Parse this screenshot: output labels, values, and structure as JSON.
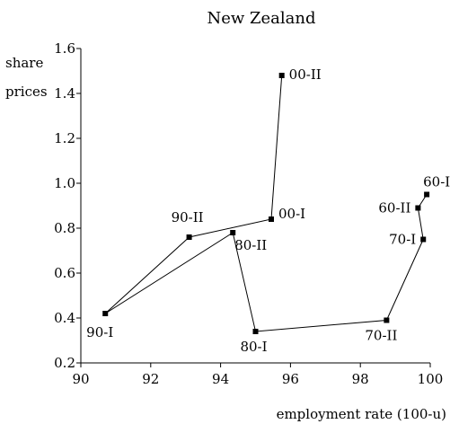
{
  "chart_data": {
    "type": "line",
    "title": "New Zealand",
    "xlabel": "employment rate (100-u)",
    "ylabel_lines": [
      "share",
      "prices"
    ],
    "xlim": [
      90,
      100
    ],
    "ylim": [
      0.2,
      1.6
    ],
    "x_ticks": [
      90,
      92,
      94,
      96,
      98,
      100
    ],
    "y_ticks": [
      0.2,
      0.4,
      0.6,
      0.8,
      1.0,
      1.2,
      1.4,
      1.6
    ],
    "x_tick_labels": [
      "90",
      "92",
      "94",
      "96",
      "98",
      "100"
    ],
    "y_tick_labels": [
      "0.2",
      "0.4",
      "0.6",
      "0.8",
      "1.0",
      "1.2",
      "1.4",
      "1.6"
    ],
    "grid": false,
    "points": [
      {
        "label": "60-I",
        "x": 99.9,
        "y": 0.95
      },
      {
        "label": "60-II",
        "x": 99.65,
        "y": 0.89
      },
      {
        "label": "70-I",
        "x": 99.8,
        "y": 0.75
      },
      {
        "label": "70-II",
        "x": 98.75,
        "y": 0.39
      },
      {
        "label": "80-I",
        "x": 95.0,
        "y": 0.34
      },
      {
        "label": "80-II",
        "x": 94.35,
        "y": 0.78
      },
      {
        "label": "90-I",
        "x": 90.7,
        "y": 0.42
      },
      {
        "label": "90-II",
        "x": 93.1,
        "y": 0.76
      },
      {
        "label": "00-I",
        "x": 95.45,
        "y": 0.84
      },
      {
        "label": "00-II",
        "x": 95.75,
        "y": 1.48
      }
    ]
  }
}
